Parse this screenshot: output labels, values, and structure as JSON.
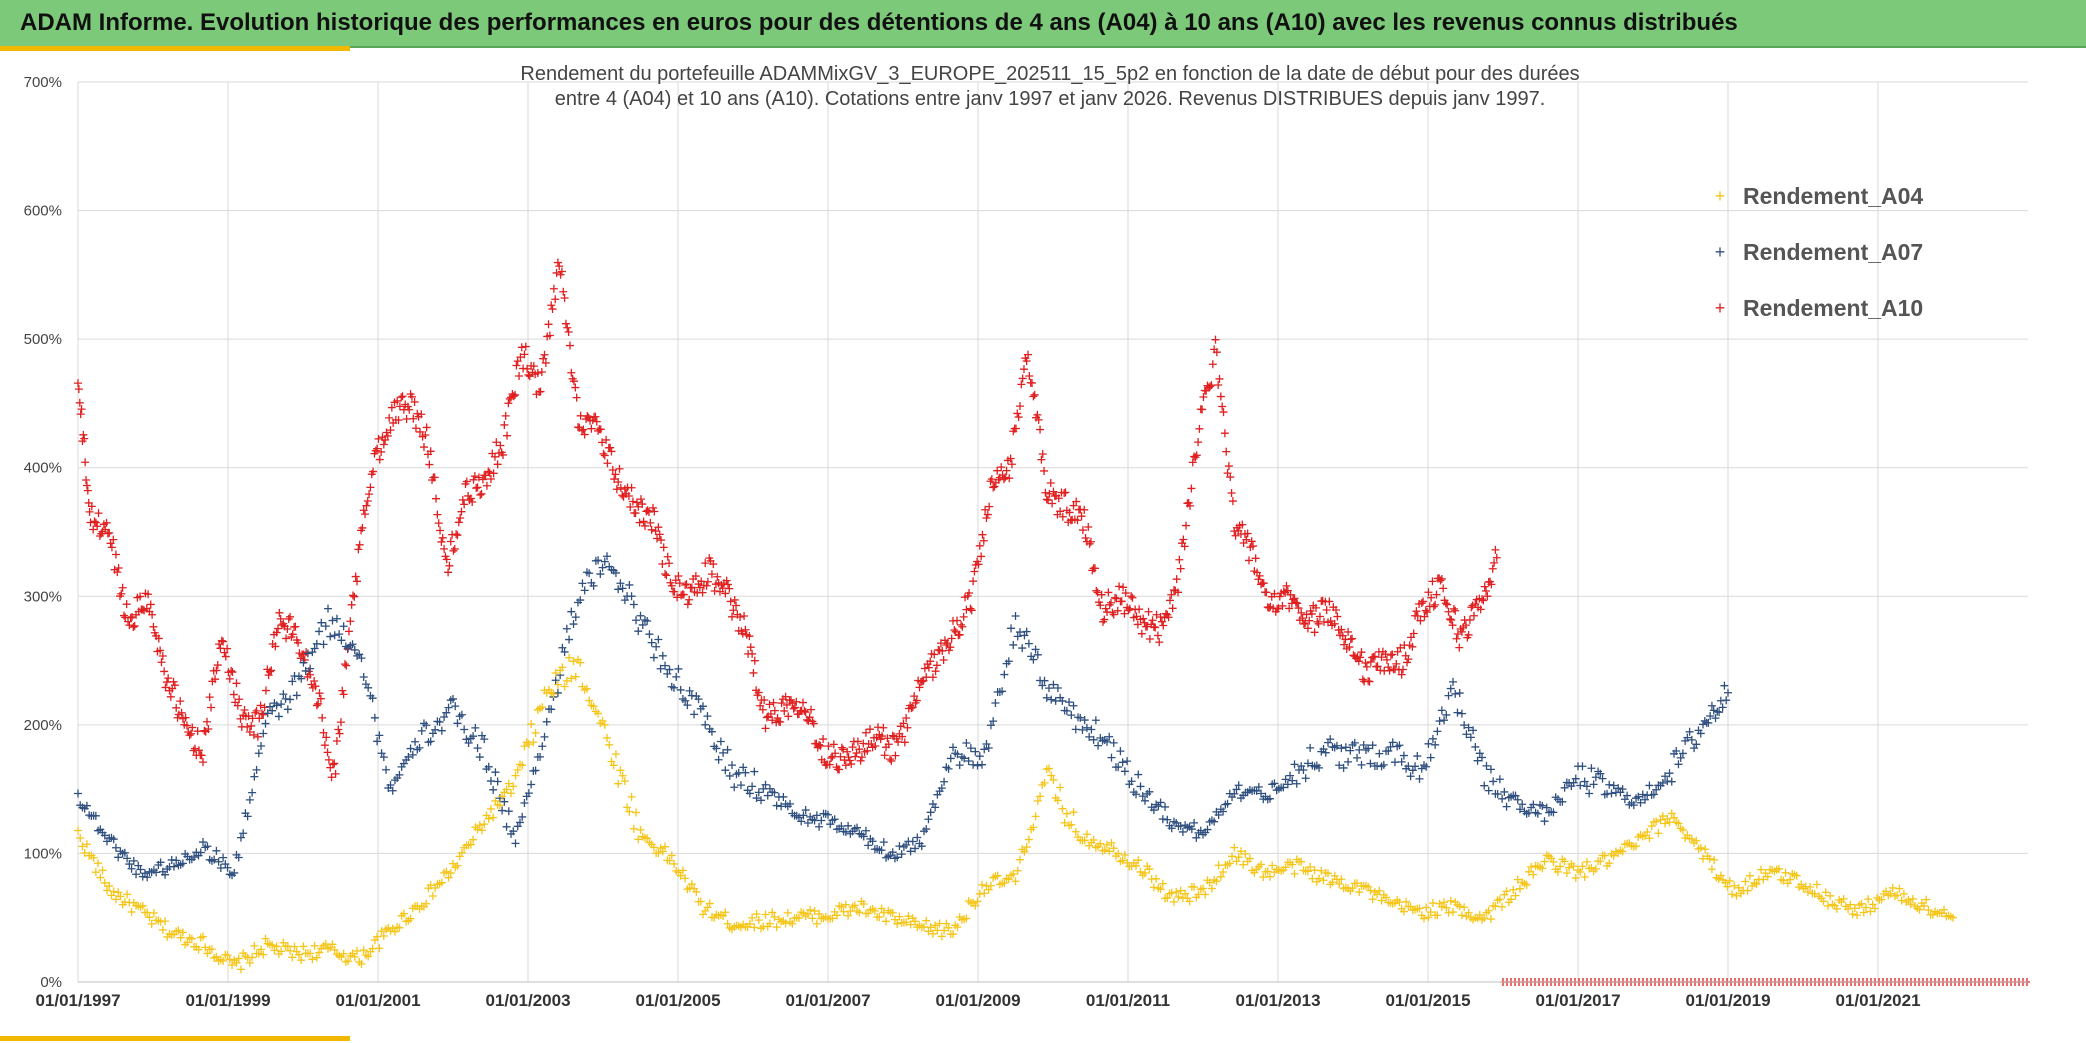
{
  "banner": {
    "title": "ADAM Informe. Evolution historique des performances en euros pour des détentions de 4 ans (A04) à 10 ans (A10) avec les revenus connus distribués"
  },
  "colors": {
    "banner_bg": "#7dc97a",
    "accent": "#f2b800",
    "A04": "#f5c518",
    "A07": "#2f4f7f",
    "A10": "#e02020"
  },
  "chart_data": {
    "type": "scatter",
    "title_lines": [
      "Rendement du portefeuille ADAMMixGV_3_EUROPE_202511_15_5p2  en fonction de la date de début pour des durées",
      "entre 4 (A04) et 10 ans (A10). Cotations entre janv 1997 et janv 2026. Revenus DISTRIBUES depuis janv 1997."
    ],
    "x_axis": {
      "type": "date",
      "min": "1997-01-01",
      "max": "2023-01-01",
      "tick_labels": [
        "01/01/1997",
        "01/01/1999",
        "01/01/2001",
        "01/01/2003",
        "01/01/2005",
        "01/01/2007",
        "01/01/2009",
        "01/01/2011",
        "01/01/2013",
        "01/01/2015",
        "01/01/2017",
        "01/01/2019",
        "01/01/2021"
      ]
    },
    "y_axis": {
      "min": 0,
      "max": 700,
      "unit": "%",
      "tick_labels": [
        "0%",
        "100%",
        "200%",
        "300%",
        "400%",
        "500%",
        "600%",
        "700%"
      ]
    },
    "grid": true,
    "legend_position": "top-right",
    "marker": "+",
    "series": [
      {
        "name": "Rendement_A04",
        "color": "#f5c518",
        "x": [
          "1997-01",
          "1997-06",
          "1997-11",
          "1998-04",
          "1998-09",
          "1999-02",
          "1999-07",
          "1999-12",
          "2000-05",
          "2000-10",
          "2001-03",
          "2001-08",
          "2002-01",
          "2002-06",
          "2002-11",
          "2003-04",
          "2003-09",
          "2004-02",
          "2004-07",
          "2004-12",
          "2005-05",
          "2005-10",
          "2006-03",
          "2006-08",
          "2007-01",
          "2007-06",
          "2007-11",
          "2008-04",
          "2008-09",
          "2009-02",
          "2009-07",
          "2009-12",
          "2010-05",
          "2010-10",
          "2011-03",
          "2011-08",
          "2012-01",
          "2012-06",
          "2012-11",
          "2013-04",
          "2013-09",
          "2014-02",
          "2014-07",
          "2014-12",
          "2015-05",
          "2015-10",
          "2016-03",
          "2016-08",
          "2017-01",
          "2017-06",
          "2017-11",
          "2018-04",
          "2018-09",
          "2019-02",
          "2019-07",
          "2019-12",
          "2020-05",
          "2020-10",
          "2021-03",
          "2021-08",
          "2022-01"
        ],
        "y": [
          115,
          72,
          55,
          38,
          30,
          12,
          28,
          22,
          25,
          18,
          40,
          62,
          88,
          125,
          155,
          225,
          248,
          185,
          115,
          95,
          58,
          45,
          48,
          50,
          52,
          58,
          50,
          42,
          40,
          75,
          80,
          160,
          115,
          105,
          90,
          65,
          70,
          100,
          85,
          90,
          80,
          75,
          60,
          55,
          58,
          50,
          72,
          95,
          85,
          95,
          110,
          130,
          100,
          70,
          85,
          80,
          65,
          55,
          70,
          60,
          50
        ]
      },
      {
        "name": "Rendement_A07",
        "color": "#2f4f7f",
        "x": [
          "1997-01",
          "1997-06",
          "1997-11",
          "1998-04",
          "1998-09",
          "1999-02",
          "1999-07",
          "1999-12",
          "2000-05",
          "2000-10",
          "2001-03",
          "2001-08",
          "2002-01",
          "2002-06",
          "2002-11",
          "2003-04",
          "2003-09",
          "2004-02",
          "2004-07",
          "2004-12",
          "2005-05",
          "2005-10",
          "2006-03",
          "2006-08",
          "2007-01",
          "2007-06",
          "2007-11",
          "2008-04",
          "2008-09",
          "2009-02",
          "2009-07",
          "2009-12",
          "2010-05",
          "2010-10",
          "2011-03",
          "2011-08",
          "2012-01",
          "2012-06",
          "2012-11",
          "2013-04",
          "2013-09",
          "2014-02",
          "2014-07",
          "2014-12",
          "2015-05",
          "2015-10",
          "2016-03",
          "2016-08",
          "2017-01",
          "2017-06",
          "2017-11",
          "2018-04",
          "2018-09",
          "2019-01"
        ],
        "y": [
          145,
          110,
          85,
          90,
          105,
          85,
          200,
          230,
          280,
          260,
          150,
          190,
          210,
          180,
          110,
          200,
          300,
          330,
          280,
          240,
          205,
          160,
          150,
          130,
          125,
          115,
          100,
          110,
          180,
          170,
          280,
          230,
          205,
          185,
          150,
          125,
          115,
          150,
          145,
          165,
          180,
          175,
          180,
          165,
          230,
          160,
          140,
          130,
          160,
          150,
          140,
          165,
          200,
          225
        ]
      },
      {
        "name": "Rendement_A10",
        "color": "#e02020",
        "x": [
          "1997-01",
          "1997-03",
          "1997-06",
          "1997-09",
          "1997-12",
          "1998-03",
          "1998-06",
          "1998-09",
          "1998-12",
          "1999-03",
          "1999-06",
          "1999-09",
          "1999-12",
          "2000-03",
          "2000-06",
          "2000-09",
          "2000-12",
          "2001-03",
          "2001-06",
          "2001-09",
          "2001-12",
          "2002-03",
          "2002-06",
          "2002-09",
          "2002-12",
          "2003-03",
          "2003-06",
          "2003-09",
          "2003-12",
          "2004-03",
          "2004-06",
          "2004-09",
          "2004-12",
          "2005-03",
          "2005-06",
          "2005-09",
          "2005-12",
          "2006-03",
          "2006-06",
          "2006-09",
          "2006-12",
          "2007-03",
          "2007-06",
          "2007-09",
          "2007-12",
          "2008-03",
          "2008-06",
          "2008-09",
          "2008-12",
          "2009-03",
          "2009-06",
          "2009-09",
          "2009-12",
          "2010-03",
          "2010-06",
          "2010-09",
          "2010-12",
          "2011-03",
          "2011-06",
          "2011-09",
          "2011-12",
          "2012-03",
          "2012-06",
          "2012-09",
          "2012-12",
          "2013-03",
          "2013-06",
          "2013-09",
          "2013-12",
          "2014-03",
          "2014-06",
          "2014-09",
          "2014-12",
          "2015-03",
          "2015-06",
          "2015-09",
          "2015-12"
        ],
        "y": [
          465,
          360,
          350,
          280,
          300,
          240,
          200,
          180,
          270,
          210,
          200,
          280,
          270,
          230,
          160,
          300,
          400,
          440,
          450,
          420,
          320,
          380,
          390,
          420,
          490,
          460,
          560,
          440,
          430,
          395,
          370,
          360,
          310,
          300,
          320,
          300,
          270,
          205,
          215,
          220,
          180,
          175,
          180,
          190,
          180,
          220,
          250,
          270,
          300,
          380,
          400,
          490,
          380,
          370,
          360,
          290,
          300,
          280,
          275,
          310,
          420,
          490,
          360,
          330,
          290,
          300,
          280,
          290,
          270,
          240,
          250,
          250,
          290,
          310,
          270,
          290,
          330
        ]
      }
    ],
    "right_marker_band": {
      "color": "#e02020",
      "y": 0,
      "x_start": "2016-01",
      "x_end": "2023-01"
    }
  }
}
